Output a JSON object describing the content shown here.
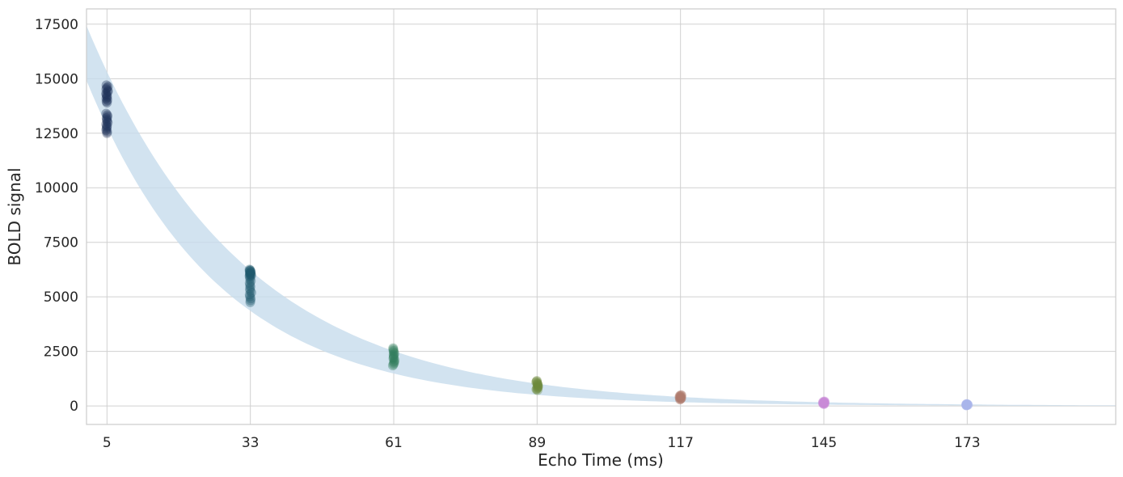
{
  "chart_data": {
    "type": "scatter",
    "title": "",
    "xlabel": "Echo Time (ms)",
    "ylabel": "BOLD signal",
    "xlim": [
      1,
      202
    ],
    "ylim": [
      -850,
      18200
    ],
    "grid": true,
    "legend": "none",
    "x_ticks": [
      5,
      33,
      61,
      89,
      117,
      145,
      173
    ],
    "y_ticks": [
      0,
      2500,
      5000,
      7500,
      10000,
      12500,
      15000,
      17500
    ],
    "band": {
      "description_free": true,
      "lower": {
        "s0": 15500,
        "t2star": 26
      },
      "upper": {
        "s0": 18000,
        "t2star": 31
      },
      "color": "#c7dcec"
    },
    "groups": [
      {
        "x": 5,
        "color": "#1b2d55",
        "ranges": [
          [
            12500,
            13400
          ],
          [
            13900,
            14700
          ]
        ]
      },
      {
        "x": 33,
        "color": "#1f5a6e",
        "ranges": [
          [
            4750,
            5900
          ],
          [
            5950,
            6250
          ]
        ]
      },
      {
        "x": 61,
        "color": "#2d7a5a",
        "ranges": [
          [
            1850,
            2650
          ]
        ]
      },
      {
        "x": 89,
        "color": "#6e8a3c",
        "ranges": [
          [
            720,
            1150
          ]
        ]
      },
      {
        "x": 117,
        "color": "#b07a6e",
        "ranges": [
          [
            290,
            500
          ]
        ]
      },
      {
        "x": 145,
        "color": "#c88ad6",
        "ranges": [
          [
            80,
            210
          ]
        ]
      },
      {
        "x": 173,
        "color": "#a9b4ea",
        "ranges": [
          [
            20,
            90
          ]
        ]
      }
    ]
  }
}
